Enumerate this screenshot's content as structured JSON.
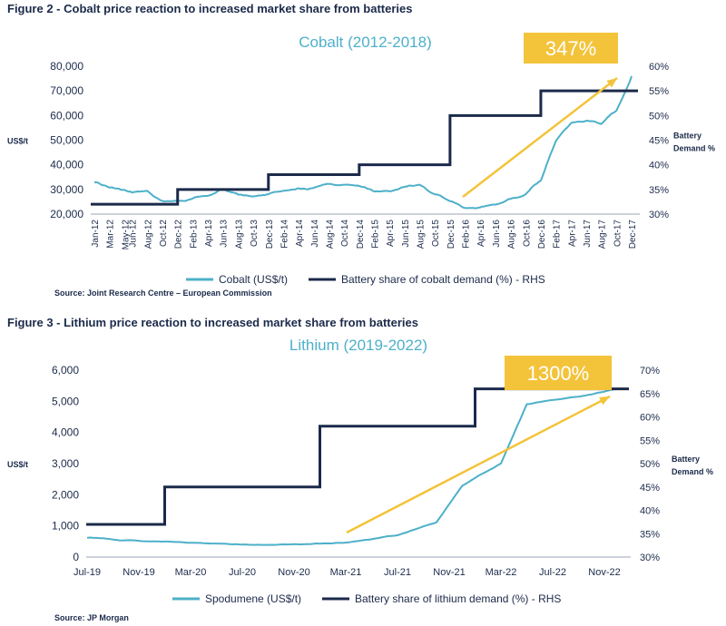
{
  "figure2": {
    "heading": "Figure 2 - Cobalt price reaction to increased market share from batteries",
    "source": "Source: Joint Research Centre – European Commission",
    "callout": "347%",
    "left_unit": "US$/t",
    "right_unit_line1": "Battery",
    "right_unit_line2": "Demand %"
  },
  "figure3": {
    "heading": "Figure 3 - Lithium price reaction to increased market share from batteries",
    "source": "Source: JP Morgan",
    "callout": "1300%",
    "left_unit": "US$/t",
    "right_unit_line1": "Battery",
    "right_unit_line2": "Demand %"
  },
  "colors": {
    "price_line": "#4db0c9",
    "share_line": "#1b2a4a",
    "arrow": "#f3c33a",
    "callout_bg": "#f3c33a",
    "title_teal": "#4db0c9"
  },
  "chart_data": [
    {
      "type": "line",
      "title": "Cobalt (2012-2018)",
      "ylabel": "US$/t",
      "y2label": "Battery Demand %",
      "ylim": [
        20000,
        80000
      ],
      "y2lim": [
        30,
        60
      ],
      "yticks": [
        "20,000",
        "30,000",
        "40,000",
        "50,000",
        "60,000",
        "70,000",
        "80,000"
      ],
      "y2ticks": [
        "30%",
        "35%",
        "40%",
        "45%",
        "50%",
        "55%",
        "60%"
      ],
      "xticks": [
        "Jan-12",
        "Mar-12",
        "May-12",
        "Jun-12",
        "Aug-12",
        "Oct-12",
        "Dec-12",
        "Feb-13",
        "Apr-13",
        "Jun-13",
        "Aug-13",
        "Oct-13",
        "Dec-13",
        "Feb-14",
        "Apr-14",
        "Jun-14",
        "Aug-14",
        "Oct-14",
        "Dec-14",
        "Feb-15",
        "Apr-15",
        "Jun-15",
        "Aug-15",
        "Oct-15",
        "Dec-15",
        "Feb-16",
        "Apr-16",
        "Jun-16",
        "Aug-16",
        "Oct-16",
        "Dec-16",
        "Feb-17",
        "Apr-17",
        "Jun-17",
        "Aug-17",
        "Oct-17",
        "Dec-17"
      ],
      "legend": [
        "Cobalt (US$/t)",
        "Battery share of cobalt demand (%) - RHS"
      ],
      "legend_position": "bottom",
      "series": [
        {
          "name": "Cobalt (US$/t)",
          "axis": "left",
          "x": [
            "Jan-12",
            "Mar-12",
            "May-12",
            "Jun-12",
            "Aug-12",
            "Oct-12",
            "Dec-12",
            "Feb-13",
            "Apr-13",
            "Jun-13",
            "Aug-13",
            "Oct-13",
            "Dec-13",
            "Feb-14",
            "Apr-14",
            "Jun-14",
            "Aug-14",
            "Oct-14",
            "Dec-14",
            "Feb-15",
            "Apr-15",
            "Jun-15",
            "Aug-15",
            "Oct-15",
            "Dec-15",
            "Feb-16",
            "Apr-16",
            "Jun-16",
            "Aug-16",
            "Oct-16",
            "Dec-16",
            "Feb-17",
            "Apr-17",
            "Jun-17",
            "Aug-17",
            "Oct-17",
            "Dec-17"
          ],
          "values": [
            33000,
            31000,
            30000,
            29000,
            29500,
            25000,
            25500,
            26000,
            27500,
            30000,
            28000,
            27000,
            28000,
            30000,
            30500,
            30500,
            32500,
            32000,
            31500,
            29000,
            29000,
            31000,
            32000,
            28000,
            25500,
            22500,
            23000,
            24000,
            26000,
            28000,
            34000,
            50000,
            57000,
            58000,
            57000,
            62000,
            76000
          ]
        },
        {
          "name": "Battery share of cobalt demand (%) - RHS",
          "axis": "right",
          "step": true,
          "x": [
            "Jan-12",
            "Dec-12",
            "Dec-13",
            "Dec-14",
            "Dec-15",
            "Dec-16",
            "Dec-17"
          ],
          "values": [
            32,
            35,
            38,
            40,
            50,
            55,
            55
          ]
        }
      ]
    },
    {
      "type": "line",
      "title": "Lithium (2019-2022)",
      "ylabel": "US$/t",
      "y2label": "Battery Demand %",
      "ylim": [
        0,
        6000
      ],
      "y2lim": [
        30,
        70
      ],
      "yticks": [
        "0",
        "1,000",
        "2,000",
        "3,000",
        "4,000",
        "5,000",
        "6,000"
      ],
      "y2ticks": [
        "30%",
        "35%",
        "40%",
        "45%",
        "50%",
        "55%",
        "60%",
        "65%",
        "70%"
      ],
      "xticks": [
        "Jul-19",
        "Nov-19",
        "Mar-20",
        "Jul-20",
        "Nov-20",
        "Mar-21",
        "Jul-21",
        "Nov-21",
        "Mar-22",
        "Jul-22",
        "Nov-22"
      ],
      "legend": [
        "Spodumene (US$/t)",
        "Battery share of lithium demand (%) - RHS"
      ],
      "legend_position": "bottom",
      "series": [
        {
          "name": "Spodumene (US$/t)",
          "axis": "left",
          "x": [
            "Jul-19",
            "Nov-19",
            "Mar-20",
            "Jul-20",
            "Nov-20",
            "Mar-21",
            "Jul-21",
            "Oct-21",
            "Dec-21",
            "Mar-22",
            "May-22",
            "Jul-22",
            "Sep-22",
            "Dec-22"
          ],
          "values": [
            620,
            520,
            470,
            400,
            400,
            450,
            700,
            1100,
            2300,
            3000,
            4900,
            5050,
            5150,
            5400
          ]
        },
        {
          "name": "Battery share of lithium demand (%) - RHS",
          "axis": "right",
          "step": true,
          "x": [
            "Jul-19",
            "Jan-20",
            "Jan-21",
            "Jan-22",
            "Jan-23"
          ],
          "values": [
            37,
            45,
            58,
            66,
            66
          ]
        }
      ]
    }
  ]
}
